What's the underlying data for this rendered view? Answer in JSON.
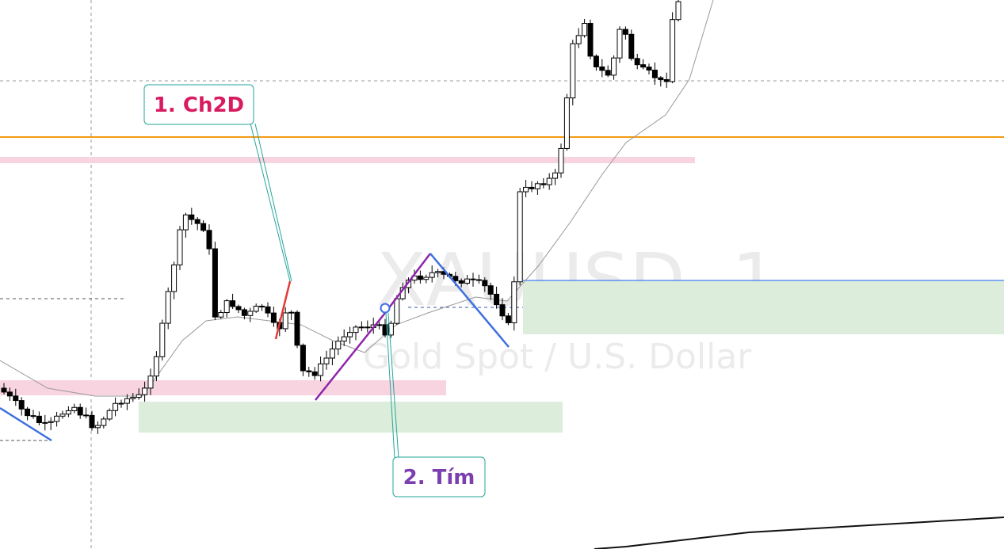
{
  "watermark": {
    "symbol": "XAUUSD, 1",
    "description": "Gold Spot / U.S. Dollar"
  },
  "annotations": [
    {
      "label": "1. Ch2D"
    },
    {
      "label": "2. Tím"
    }
  ]
}
